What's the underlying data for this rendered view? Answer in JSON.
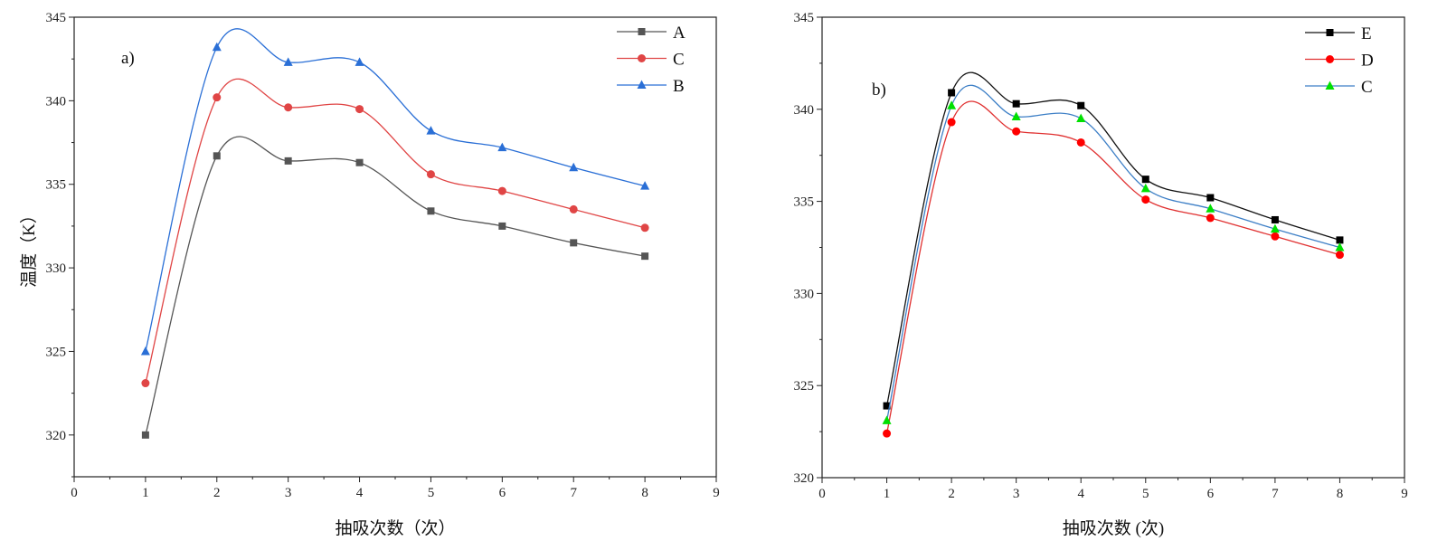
{
  "chart_data": [
    {
      "type": "line",
      "panel_label": "a)",
      "xlabel": "抽吸次数（次）",
      "ylabel": "温度（K）",
      "xlim": [
        0,
        9
      ],
      "ylim": [
        317.5,
        345
      ],
      "xticks": [
        0,
        1,
        2,
        3,
        4,
        5,
        6,
        7,
        8,
        9
      ],
      "yticks": [
        320,
        325,
        330,
        335,
        340,
        345
      ],
      "grid": false,
      "legend": "top-right",
      "smooth": true,
      "x": [
        1,
        2,
        3,
        4,
        5,
        6,
        7,
        8
      ],
      "series": [
        {
          "name": "A",
          "values": [
            320,
            336.7,
            336.4,
            336.3,
            333.4,
            332.5,
            331.5,
            330.7
          ],
          "color": "#555555",
          "marker_color": "#555555",
          "marker": "square"
        },
        {
          "name": "C",
          "values": [
            323.1,
            340.2,
            339.6,
            339.5,
            335.6,
            334.6,
            333.5,
            332.4
          ],
          "color": "#e04545",
          "marker_color": "#e04545",
          "marker": "circle"
        },
        {
          "name": "B",
          "values": [
            325,
            343.2,
            342.3,
            342.3,
            338.2,
            337.2,
            336.0,
            334.9
          ],
          "color": "#2a6fd6",
          "marker_color": "#2a6fd6",
          "marker": "triangle"
        }
      ]
    },
    {
      "type": "line",
      "panel_label": "b)",
      "xlabel": "抽吸次数 (次)",
      "ylabel": "",
      "xlim": [
        0,
        9
      ],
      "ylim": [
        320,
        345
      ],
      "xticks": [
        0,
        1,
        2,
        3,
        4,
        5,
        6,
        7,
        8,
        9
      ],
      "yticks": [
        320,
        325,
        330,
        335,
        340,
        345
      ],
      "grid": false,
      "legend": "top-right",
      "smooth": true,
      "x": [
        1,
        2,
        3,
        4,
        5,
        6,
        7,
        8
      ],
      "series": [
        {
          "name": "E",
          "values": [
            323.9,
            340.9,
            340.3,
            340.2,
            336.2,
            335.2,
            334.0,
            332.9
          ],
          "color": "#111111",
          "marker_color": "#000000",
          "marker": "square"
        },
        {
          "name": "D",
          "values": [
            322.4,
            339.3,
            338.8,
            338.2,
            335.1,
            334.1,
            333.1,
            332.1
          ],
          "color": "#e03030",
          "marker_color": "#ff0000",
          "marker": "circle"
        },
        {
          "name": "C",
          "values": [
            323.1,
            340.2,
            339.6,
            339.5,
            335.7,
            334.6,
            333.5,
            332.5
          ],
          "color": "#3d7fc6",
          "marker_color": "#00e000",
          "marker": "triangle"
        }
      ]
    }
  ]
}
